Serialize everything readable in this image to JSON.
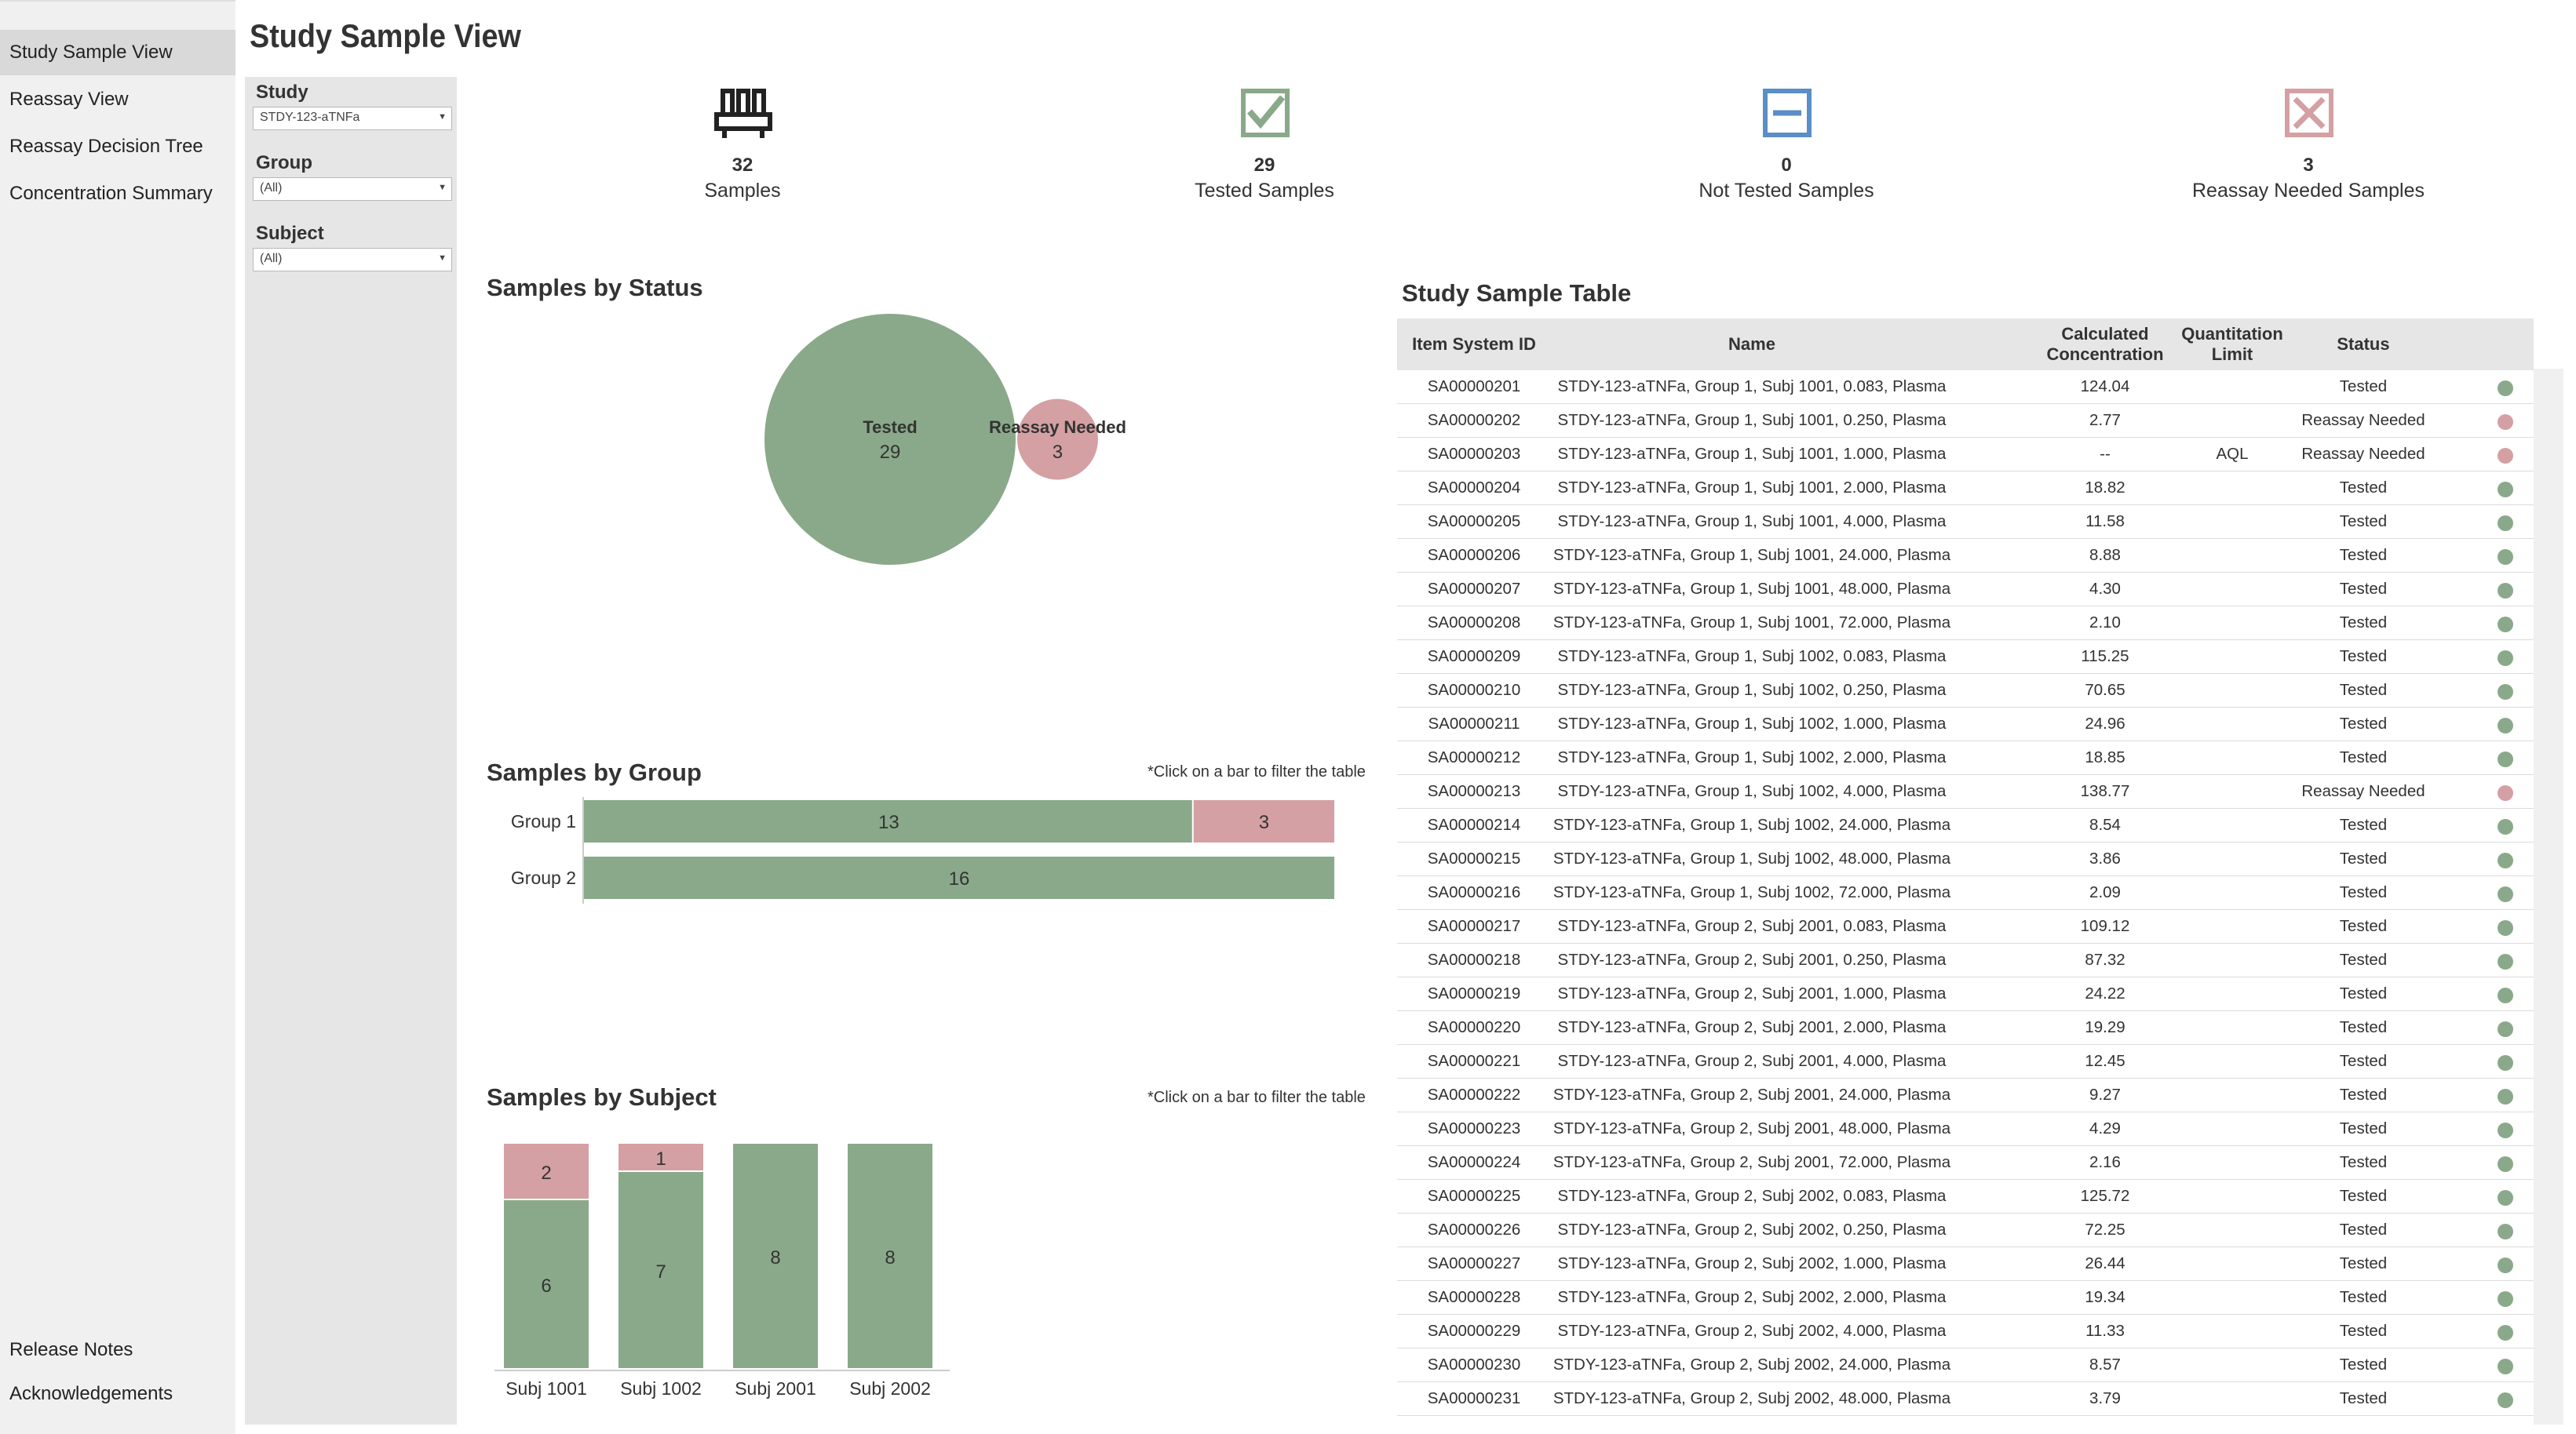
{
  "nav": {
    "items": [
      "Study Sample View",
      "Reassay View",
      "Reassay Decision Tree",
      "Concentration Summary"
    ],
    "footer": [
      "Release Notes",
      "Acknowledgements"
    ]
  },
  "page_title": "Study Sample View",
  "filters": {
    "study": {
      "label": "Study",
      "value": "STDY-123-aTNFa"
    },
    "group": {
      "label": "Group",
      "value": "(All)"
    },
    "subject": {
      "label": "Subject",
      "value": "(All)"
    }
  },
  "kpis": [
    {
      "value": "32",
      "label": "Samples",
      "icon": "sample-rack-icon"
    },
    {
      "value": "29",
      "label": "Tested Samples",
      "icon": "checkbox-checked-icon"
    },
    {
      "value": "0",
      "label": "Not Tested Samples",
      "icon": "checkbox-minus-icon"
    },
    {
      "value": "3",
      "label": "Reassay Needed Samples",
      "icon": "checkbox-x-icon"
    }
  ],
  "colors": {
    "tested": "#8aa98a",
    "reassay": "#d4a0a3",
    "not_tested": "#5a8ec6",
    "header_bg": "#e6e6e6"
  },
  "status_section": {
    "title": "Samples by Status"
  },
  "group_section": {
    "title": "Samples by Group",
    "hint": "*Click on a bar to filter the table"
  },
  "subject_section": {
    "title": "Samples by Subject",
    "hint": "*Click on a bar to filter the table"
  },
  "chart_data": [
    {
      "type": "bubble",
      "title": "Samples by Status",
      "items": [
        {
          "name": "Tested",
          "value": 29
        },
        {
          "name": "Reassay Needed",
          "value": 3
        }
      ]
    },
    {
      "type": "bar",
      "orientation": "horizontal",
      "stacked": true,
      "title": "Samples by Group",
      "categories": [
        "Group 1",
        "Group 2"
      ],
      "series": [
        {
          "name": "Tested",
          "values": [
            13,
            16
          ]
        },
        {
          "name": "Reassay Needed",
          "values": [
            3,
            0
          ]
        }
      ],
      "xlim": [
        0,
        16
      ]
    },
    {
      "type": "bar",
      "orientation": "vertical",
      "stacked": true,
      "title": "Samples by Subject",
      "categories": [
        "Subj 1001",
        "Subj 1002",
        "Subj 2001",
        "Subj 2002"
      ],
      "series": [
        {
          "name": "Tested",
          "values": [
            6,
            7,
            8,
            8
          ]
        },
        {
          "name": "Reassay Needed",
          "values": [
            2,
            1,
            0,
            0
          ]
        }
      ],
      "ylim": [
        0,
        8
      ]
    }
  ],
  "table": {
    "title": "Study Sample Table",
    "headers": [
      "Item System ID",
      "Name",
      "Calculated\nConcentration",
      "Quantitation\nLimit",
      "Status"
    ],
    "rows": [
      [
        "SA00000201",
        "STDY-123-aTNFa, Group 1, Subj 1001, 0.083, Plasma",
        "124.04",
        "",
        "Tested"
      ],
      [
        "SA00000202",
        "STDY-123-aTNFa, Group 1, Subj 1001, 0.250, Plasma",
        "2.77",
        "",
        "Reassay Needed"
      ],
      [
        "SA00000203",
        "STDY-123-aTNFa, Group 1, Subj 1001, 1.000, Plasma",
        "--",
        "AQL",
        "Reassay Needed"
      ],
      [
        "SA00000204",
        "STDY-123-aTNFa, Group 1, Subj 1001, 2.000, Plasma",
        "18.82",
        "",
        "Tested"
      ],
      [
        "SA00000205",
        "STDY-123-aTNFa, Group 1, Subj 1001, 4.000, Plasma",
        "11.58",
        "",
        "Tested"
      ],
      [
        "SA00000206",
        "STDY-123-aTNFa, Group 1, Subj 1001, 24.000, Plasma",
        "8.88",
        "",
        "Tested"
      ],
      [
        "SA00000207",
        "STDY-123-aTNFa, Group 1, Subj 1001, 48.000, Plasma",
        "4.30",
        "",
        "Tested"
      ],
      [
        "SA00000208",
        "STDY-123-aTNFa, Group 1, Subj 1001, 72.000, Plasma",
        "2.10",
        "",
        "Tested"
      ],
      [
        "SA00000209",
        "STDY-123-aTNFa, Group 1, Subj 1002, 0.083, Plasma",
        "115.25",
        "",
        "Tested"
      ],
      [
        "SA00000210",
        "STDY-123-aTNFa, Group 1, Subj 1002, 0.250, Plasma",
        "70.65",
        "",
        "Tested"
      ],
      [
        "SA00000211",
        "STDY-123-aTNFa, Group 1, Subj 1002, 1.000, Plasma",
        "24.96",
        "",
        "Tested"
      ],
      [
        "SA00000212",
        "STDY-123-aTNFa, Group 1, Subj 1002, 2.000, Plasma",
        "18.85",
        "",
        "Tested"
      ],
      [
        "SA00000213",
        "STDY-123-aTNFa, Group 1, Subj 1002, 4.000, Plasma",
        "138.77",
        "",
        "Reassay Needed"
      ],
      [
        "SA00000214",
        "STDY-123-aTNFa, Group 1, Subj 1002, 24.000, Plasma",
        "8.54",
        "",
        "Tested"
      ],
      [
        "SA00000215",
        "STDY-123-aTNFa, Group 1, Subj 1002, 48.000, Plasma",
        "3.86",
        "",
        "Tested"
      ],
      [
        "SA00000216",
        "STDY-123-aTNFa, Group 1, Subj 1002, 72.000, Plasma",
        "2.09",
        "",
        "Tested"
      ],
      [
        "SA00000217",
        "STDY-123-aTNFa, Group 2, Subj 2001, 0.083, Plasma",
        "109.12",
        "",
        "Tested"
      ],
      [
        "SA00000218",
        "STDY-123-aTNFa, Group 2, Subj 2001, 0.250, Plasma",
        "87.32",
        "",
        "Tested"
      ],
      [
        "SA00000219",
        "STDY-123-aTNFa, Group 2, Subj 2001, 1.000, Plasma",
        "24.22",
        "",
        "Tested"
      ],
      [
        "SA00000220",
        "STDY-123-aTNFa, Group 2, Subj 2001, 2.000, Plasma",
        "19.29",
        "",
        "Tested"
      ],
      [
        "SA00000221",
        "STDY-123-aTNFa, Group 2, Subj 2001, 4.000, Plasma",
        "12.45",
        "",
        "Tested"
      ],
      [
        "SA00000222",
        "STDY-123-aTNFa, Group 2, Subj 2001, 24.000, Plasma",
        "9.27",
        "",
        "Tested"
      ],
      [
        "SA00000223",
        "STDY-123-aTNFa, Group 2, Subj 2001, 48.000, Plasma",
        "4.29",
        "",
        "Tested"
      ],
      [
        "SA00000224",
        "STDY-123-aTNFa, Group 2, Subj 2001, 72.000, Plasma",
        "2.16",
        "",
        "Tested"
      ],
      [
        "SA00000225",
        "STDY-123-aTNFa, Group 2, Subj 2002, 0.083, Plasma",
        "125.72",
        "",
        "Tested"
      ],
      [
        "SA00000226",
        "STDY-123-aTNFa, Group 2, Subj 2002, 0.250, Plasma",
        "72.25",
        "",
        "Tested"
      ],
      [
        "SA00000227",
        "STDY-123-aTNFa, Group 2, Subj 2002, 1.000, Plasma",
        "26.44",
        "",
        "Tested"
      ],
      [
        "SA00000228",
        "STDY-123-aTNFa, Group 2, Subj 2002, 2.000, Plasma",
        "19.34",
        "",
        "Tested"
      ],
      [
        "SA00000229",
        "STDY-123-aTNFa, Group 2, Subj 2002, 4.000, Plasma",
        "11.33",
        "",
        "Tested"
      ],
      [
        "SA00000230",
        "STDY-123-aTNFa, Group 2, Subj 2002, 24.000, Plasma",
        "8.57",
        "",
        "Tested"
      ],
      [
        "SA00000231",
        "STDY-123-aTNFa, Group 2, Subj 2002, 48.000, Plasma",
        "3.79",
        "",
        "Tested"
      ]
    ]
  }
}
